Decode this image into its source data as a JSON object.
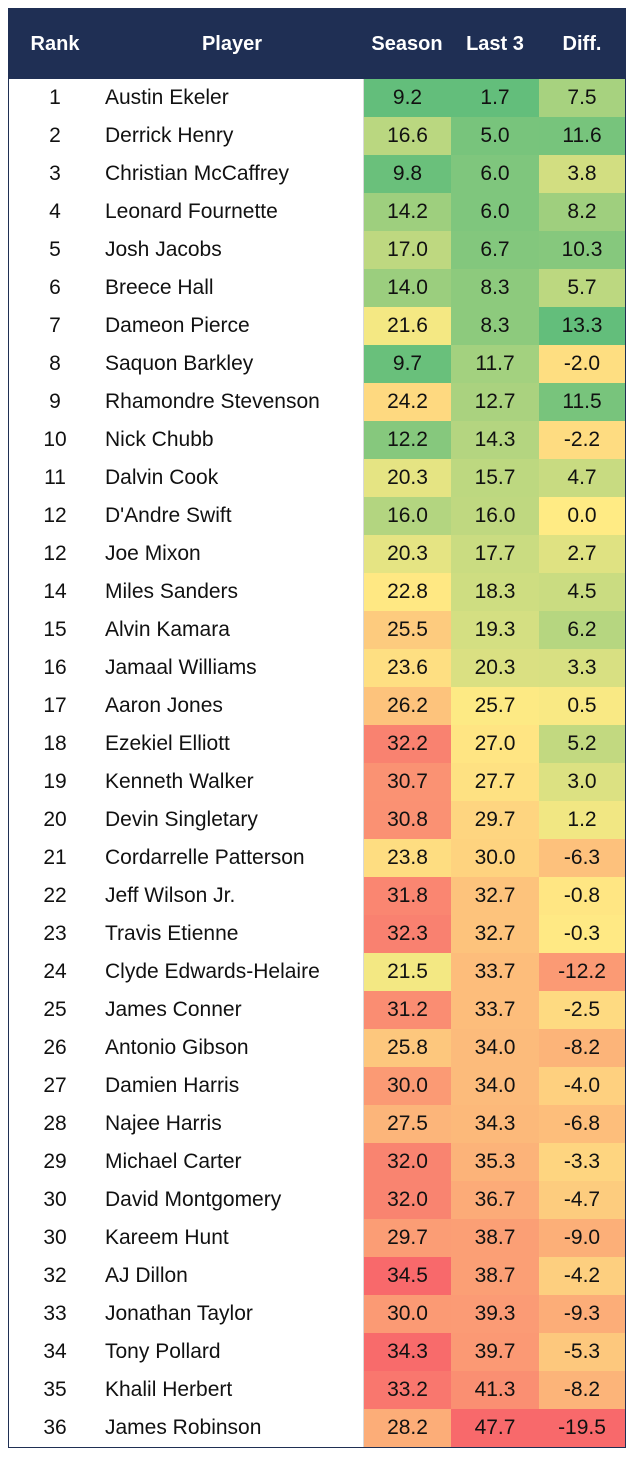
{
  "chart_data": {
    "type": "table",
    "columns": [
      "Rank",
      "Player",
      "Season",
      "Last 3",
      "Diff."
    ],
    "rows": [
      {
        "rank": "1",
        "player": "Austin Ekeler",
        "season": "9.2",
        "last3": "1.7",
        "diff": "7.5"
      },
      {
        "rank": "2",
        "player": "Derrick Henry",
        "season": "16.6",
        "last3": "5.0",
        "diff": "11.6"
      },
      {
        "rank": "3",
        "player": "Christian McCaffrey",
        "season": "9.8",
        "last3": "6.0",
        "diff": "3.8"
      },
      {
        "rank": "4",
        "player": "Leonard Fournette",
        "season": "14.2",
        "last3": "6.0",
        "diff": "8.2"
      },
      {
        "rank": "5",
        "player": "Josh Jacobs",
        "season": "17.0",
        "last3": "6.7",
        "diff": "10.3"
      },
      {
        "rank": "6",
        "player": "Breece Hall",
        "season": "14.0",
        "last3": "8.3",
        "diff": "5.7"
      },
      {
        "rank": "7",
        "player": "Dameon Pierce",
        "season": "21.6",
        "last3": "8.3",
        "diff": "13.3"
      },
      {
        "rank": "8",
        "player": "Saquon Barkley",
        "season": "9.7",
        "last3": "11.7",
        "diff": "-2.0"
      },
      {
        "rank": "9",
        "player": "Rhamondre Stevenson",
        "season": "24.2",
        "last3": "12.7",
        "diff": "11.5"
      },
      {
        "rank": "10",
        "player": "Nick Chubb",
        "season": "12.2",
        "last3": "14.3",
        "diff": "-2.2"
      },
      {
        "rank": "11",
        "player": "Dalvin Cook",
        "season": "20.3",
        "last3": "15.7",
        "diff": "4.7"
      },
      {
        "rank": "12",
        "player": "D'Andre Swift",
        "season": "16.0",
        "last3": "16.0",
        "diff": "0.0"
      },
      {
        "rank": "12",
        "player": "Joe Mixon",
        "season": "20.3",
        "last3": "17.7",
        "diff": "2.7"
      },
      {
        "rank": "14",
        "player": "Miles Sanders",
        "season": "22.8",
        "last3": "18.3",
        "diff": "4.5"
      },
      {
        "rank": "15",
        "player": "Alvin Kamara",
        "season": "25.5",
        "last3": "19.3",
        "diff": "6.2"
      },
      {
        "rank": "16",
        "player": "Jamaal Williams",
        "season": "23.6",
        "last3": "20.3",
        "diff": "3.3"
      },
      {
        "rank": "17",
        "player": "Aaron Jones",
        "season": "26.2",
        "last3": "25.7",
        "diff": "0.5"
      },
      {
        "rank": "18",
        "player": "Ezekiel Elliott",
        "season": "32.2",
        "last3": "27.0",
        "diff": "5.2"
      },
      {
        "rank": "19",
        "player": "Kenneth Walker",
        "season": "30.7",
        "last3": "27.7",
        "diff": "3.0"
      },
      {
        "rank": "20",
        "player": "Devin Singletary",
        "season": "30.8",
        "last3": "29.7",
        "diff": "1.2"
      },
      {
        "rank": "21",
        "player": "Cordarrelle Patterson",
        "season": "23.8",
        "last3": "30.0",
        "diff": "-6.3"
      },
      {
        "rank": "22",
        "player": "Jeff Wilson Jr.",
        "season": "31.8",
        "last3": "32.7",
        "diff": "-0.8"
      },
      {
        "rank": "23",
        "player": "Travis Etienne",
        "season": "32.3",
        "last3": "32.7",
        "diff": "-0.3"
      },
      {
        "rank": "24",
        "player": "Clyde Edwards-Helaire",
        "season": "21.5",
        "last3": "33.7",
        "diff": "-12.2"
      },
      {
        "rank": "25",
        "player": "James Conner",
        "season": "31.2",
        "last3": "33.7",
        "diff": "-2.5"
      },
      {
        "rank": "26",
        "player": "Antonio Gibson",
        "season": "25.8",
        "last3": "34.0",
        "diff": "-8.2"
      },
      {
        "rank": "27",
        "player": "Damien Harris",
        "season": "30.0",
        "last3": "34.0",
        "diff": "-4.0"
      },
      {
        "rank": "28",
        "player": "Najee Harris",
        "season": "27.5",
        "last3": "34.3",
        "diff": "-6.8"
      },
      {
        "rank": "29",
        "player": "Michael Carter",
        "season": "32.0",
        "last3": "35.3",
        "diff": "-3.3"
      },
      {
        "rank": "30",
        "player": "David Montgomery",
        "season": "32.0",
        "last3": "36.7",
        "diff": "-4.7"
      },
      {
        "rank": "30",
        "player": "Kareem Hunt",
        "season": "29.7",
        "last3": "38.7",
        "diff": "-9.0"
      },
      {
        "rank": "32",
        "player": "AJ Dillon",
        "season": "34.5",
        "last3": "38.7",
        "diff": "-4.2"
      },
      {
        "rank": "33",
        "player": "Jonathan Taylor",
        "season": "30.0",
        "last3": "39.3",
        "diff": "-9.3"
      },
      {
        "rank": "34",
        "player": "Tony Pollard",
        "season": "34.3",
        "last3": "39.7",
        "diff": "-5.3"
      },
      {
        "rank": "35",
        "player": "Khalil Herbert",
        "season": "33.2",
        "last3": "41.3",
        "diff": "-8.2"
      },
      {
        "rank": "36",
        "player": "James Robinson",
        "season": "28.2",
        "last3": "47.7",
        "diff": "-19.5"
      }
    ]
  },
  "colors": {
    "header_bg": "#1f2f54",
    "header_text": "#ffffff",
    "scale_good": "#63be7b",
    "scale_mid": "#ffeb84",
    "scale_bad": "#f8696b"
  }
}
